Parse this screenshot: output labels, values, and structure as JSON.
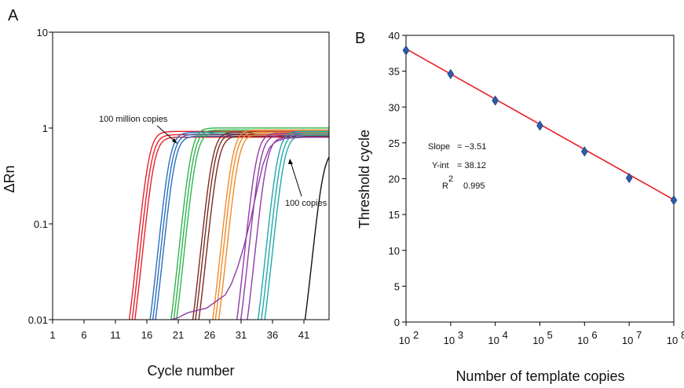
{
  "chart_data": [
    {
      "panel_label": "A",
      "type": "line",
      "ylabel": "ΔRn",
      "xlabel": "Cycle number",
      "yscale": "log",
      "ylim": [
        0.01,
        10
      ],
      "xlim": [
        1,
        45
      ],
      "x_ticks": [
        "1",
        "6",
        "11",
        "16",
        "21",
        "26",
        "31",
        "36",
        "41"
      ],
      "y_ticks": [
        "0.01",
        "0.1",
        "1",
        "10"
      ],
      "annotations": [
        "100 million copies",
        "100 copies"
      ],
      "series": [
        {
          "color": "#e8202a",
          "curves": [
            {
              "mid": 16.3,
              "plateau": 0.92
            },
            {
              "mid": 16.7,
              "plateau": 0.85
            },
            {
              "mid": 17.1,
              "plateau": 0.8
            }
          ]
        },
        {
          "color": "#2a6ebd",
          "curves": [
            {
              "mid": 19.6,
              "plateau": 0.9
            },
            {
              "mid": 20.0,
              "plateau": 0.86
            },
            {
              "mid": 20.4,
              "plateau": 0.82
            }
          ]
        },
        {
          "color": "#2eb34a",
          "curves": [
            {
              "mid": 23.0,
              "plateau": 1.0
            },
            {
              "mid": 23.4,
              "plateau": 0.95
            },
            {
              "mid": 23.8,
              "plateau": 0.9
            }
          ]
        },
        {
          "color": "#7a2a20",
          "curves": [
            {
              "mid": 26.4,
              "plateau": 0.9
            },
            {
              "mid": 26.8,
              "plateau": 0.86
            },
            {
              "mid": 27.3,
              "plateau": 0.82
            }
          ]
        },
        {
          "color": "#f08a28",
          "curves": [
            {
              "mid": 29.6,
              "plateau": 0.95
            },
            {
              "mid": 30.0,
              "plateau": 0.9
            },
            {
              "mid": 30.5,
              "plateau": 0.86
            }
          ]
        },
        {
          "color": "#8e3aa8",
          "curves": [
            {
              "mid": 33.4,
              "plateau": 0.88
            },
            {
              "mid": 34.0,
              "plateau": 0.84
            },
            {
              "mid": 35.0,
              "plateau": 0.8
            }
          ]
        },
        {
          "color": "#20a8a8",
          "curves": [
            {
              "mid": 36.8,
              "plateau": 0.92
            },
            {
              "mid": 37.3,
              "plateau": 0.88
            },
            {
              "mid": 37.8,
              "plateau": 0.84
            }
          ]
        },
        {
          "color": "#111111",
          "curves": [
            {
              "mid": 44.0,
              "plateau": 0.6
            }
          ]
        }
      ]
    },
    {
      "panel_label": "B",
      "type": "scatter",
      "xlabel": "Number of template copies",
      "ylabel": "Threshold cycle",
      "xscale": "log",
      "xlim": [
        100,
        100000000
      ],
      "ylim": [
        0,
        40
      ],
      "x_ticks": [
        {
          "base": "10",
          "exp": "2"
        },
        {
          "base": "10",
          "exp": "3"
        },
        {
          "base": "10",
          "exp": "4"
        },
        {
          "base": "10",
          "exp": "5"
        },
        {
          "base": "10",
          "exp": "6"
        },
        {
          "base": "10",
          "exp": "7"
        },
        {
          "base": "10",
          "exp": "8"
        }
      ],
      "y_ticks": [
        "0",
        "5",
        "10",
        "15",
        "20",
        "25",
        "30",
        "35",
        "40"
      ],
      "points": [
        {
          "x": 100,
          "y": 37.9
        },
        {
          "x": 1000,
          "y": 34.6
        },
        {
          "x": 10000,
          "y": 30.9
        },
        {
          "x": 100000,
          "y": 27.4
        },
        {
          "x": 1000000,
          "y": 23.8
        },
        {
          "x": 10000000,
          "y": 20.1
        },
        {
          "x": 100000000,
          "y": 17.0
        }
      ],
      "fit": {
        "slope": -3.51,
        "intercept": 38.12,
        "r2": 0.995
      },
      "fit_color": "#e8202a",
      "point_color": "#2a5ca8",
      "stats": {
        "slope_label": "Slope",
        "slope_value": "= −3.51",
        "yint_label": "Y-int",
        "yint_value": "=  38.12",
        "r_label": "R",
        "r_exp": "2",
        "r2_value": "0.995"
      }
    }
  ]
}
